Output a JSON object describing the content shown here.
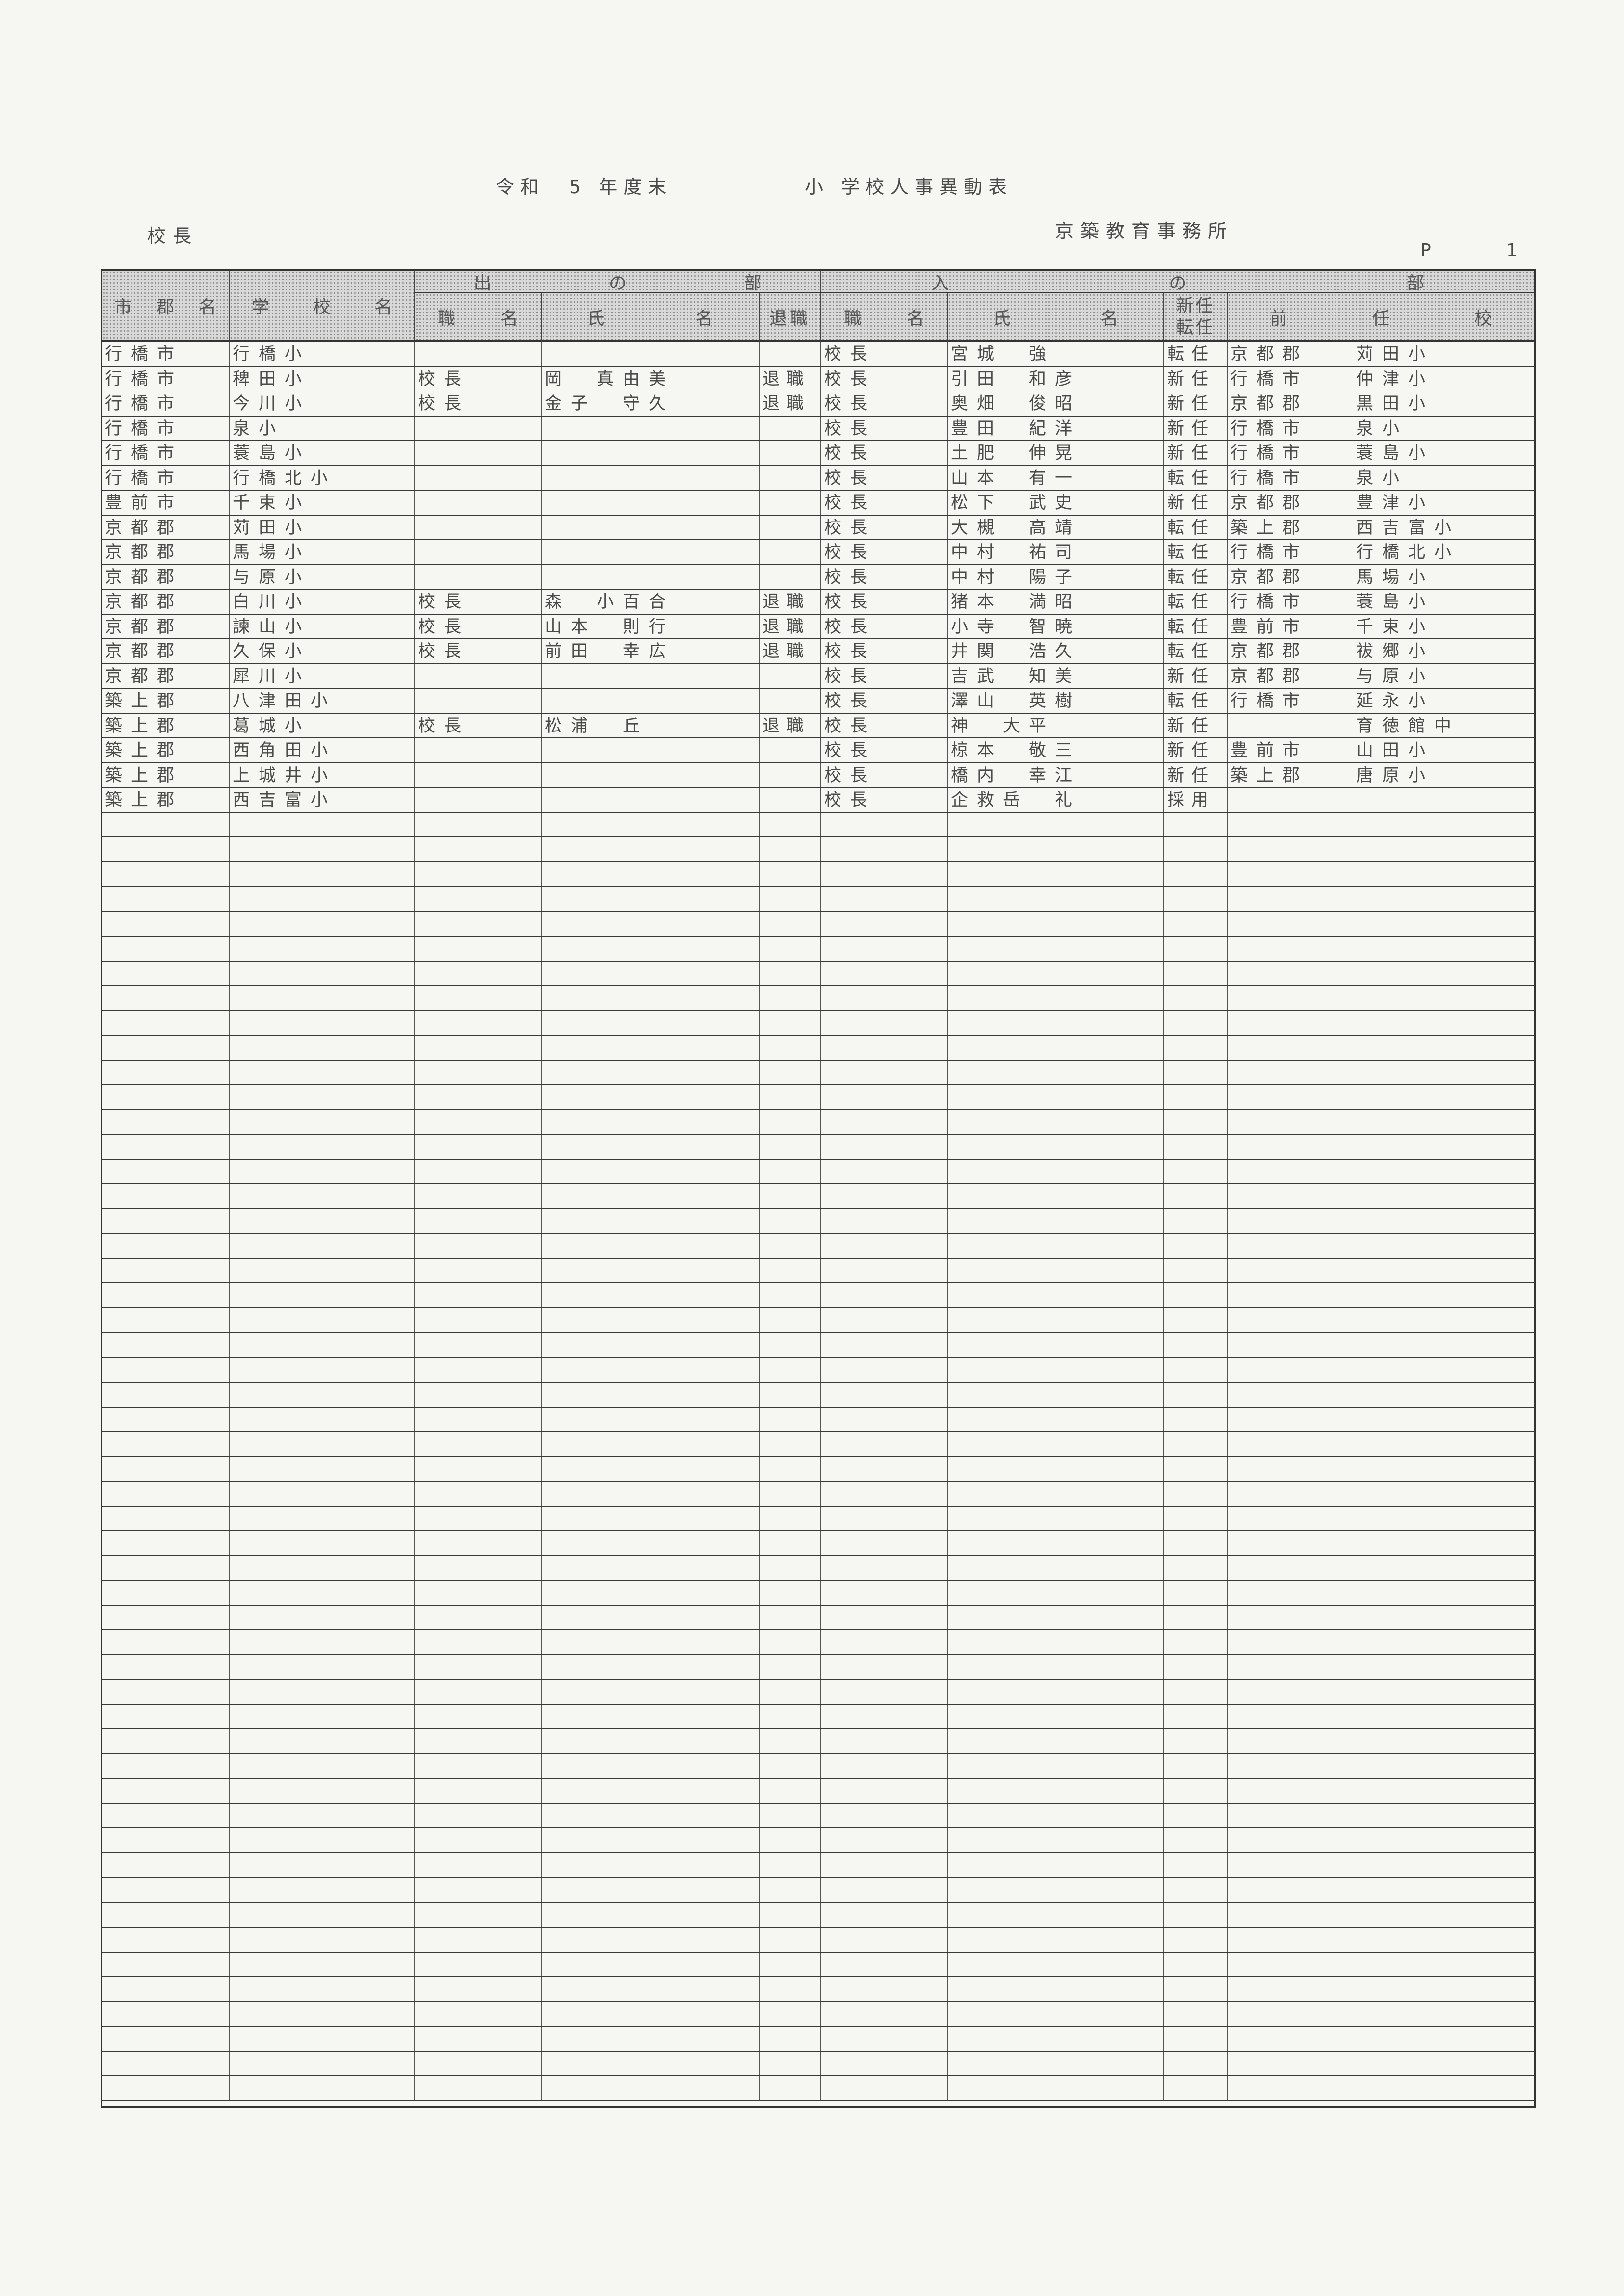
{
  "header": {
    "title_era": "令和　5 年度末",
    "title_main": "小 学校人事異動表",
    "category": "校長",
    "office": "京築教育事務所",
    "page_label": "P",
    "page_number": "1"
  },
  "table": {
    "group_out": [
      "出",
      "の",
      "部"
    ],
    "group_in": [
      "入",
      "の",
      "部"
    ],
    "columns": {
      "district": [
        "市",
        "郡",
        "名"
      ],
      "school": [
        "学",
        "校",
        "名"
      ],
      "out_position": [
        "職",
        "名"
      ],
      "out_name": [
        "氏",
        "名"
      ],
      "out_type": "退職",
      "in_position": [
        "職",
        "名"
      ],
      "in_name": [
        "氏",
        "名"
      ],
      "in_type_1": "新任",
      "in_type_2": "転任",
      "prev_school": [
        "前",
        "任",
        "校"
      ]
    },
    "rows": [
      {
        "district": "行橋市",
        "school": "行橋小",
        "out_position": "",
        "out_name": "",
        "out_type": "",
        "in_position": "校長",
        "in_name": "宮城　強",
        "in_type": "転任",
        "prev_district": "京都郡",
        "prev_school": "苅田小"
      },
      {
        "district": "行橋市",
        "school": "稗田小",
        "out_position": "校長",
        "out_name": "岡　真由美",
        "out_type": "退職",
        "in_position": "校長",
        "in_name": "引田　和彦",
        "in_type": "新任",
        "prev_district": "行橋市",
        "prev_school": "仲津小"
      },
      {
        "district": "行橋市",
        "school": "今川小",
        "out_position": "校長",
        "out_name": "金子　守久",
        "out_type": "退職",
        "in_position": "校長",
        "in_name": "奥畑　俊昭",
        "in_type": "新任",
        "prev_district": "京都郡",
        "prev_school": "黒田小"
      },
      {
        "district": "行橋市",
        "school": "泉小",
        "out_position": "",
        "out_name": "",
        "out_type": "",
        "in_position": "校長",
        "in_name": "豊田　紀洋",
        "in_type": "新任",
        "prev_district": "行橋市",
        "prev_school": "泉小"
      },
      {
        "district": "行橋市",
        "school": "蓑島小",
        "out_position": "",
        "out_name": "",
        "out_type": "",
        "in_position": "校長",
        "in_name": "土肥　伸晃",
        "in_type": "新任",
        "prev_district": "行橋市",
        "prev_school": "蓑島小"
      },
      {
        "district": "行橋市",
        "school": "行橋北小",
        "out_position": "",
        "out_name": "",
        "out_type": "",
        "in_position": "校長",
        "in_name": "山本　有一",
        "in_type": "転任",
        "prev_district": "行橋市",
        "prev_school": "泉小"
      },
      {
        "district": "豊前市",
        "school": "千束小",
        "out_position": "",
        "out_name": "",
        "out_type": "",
        "in_position": "校長",
        "in_name": "松下　武史",
        "in_type": "新任",
        "prev_district": "京都郡",
        "prev_school": "豊津小"
      },
      {
        "district": "京都郡",
        "school": "苅田小",
        "out_position": "",
        "out_name": "",
        "out_type": "",
        "in_position": "校長",
        "in_name": "大槻　高靖",
        "in_type": "転任",
        "prev_district": "築上郡",
        "prev_school": "西吉富小"
      },
      {
        "district": "京都郡",
        "school": "馬場小",
        "out_position": "",
        "out_name": "",
        "out_type": "",
        "in_position": "校長",
        "in_name": "中村　祐司",
        "in_type": "転任",
        "prev_district": "行橋市",
        "prev_school": "行橋北小"
      },
      {
        "district": "京都郡",
        "school": "与原小",
        "out_position": "",
        "out_name": "",
        "out_type": "",
        "in_position": "校長",
        "in_name": "中村　陽子",
        "in_type": "転任",
        "prev_district": "京都郡",
        "prev_school": "馬場小"
      },
      {
        "district": "京都郡",
        "school": "白川小",
        "out_position": "校長",
        "out_name": "森　小百合",
        "out_type": "退職",
        "in_position": "校長",
        "in_name": "猪本　満昭",
        "in_type": "転任",
        "prev_district": "行橋市",
        "prev_school": "蓑島小"
      },
      {
        "district": "京都郡",
        "school": "諫山小",
        "out_position": "校長",
        "out_name": "山本　則行",
        "out_type": "退職",
        "in_position": "校長",
        "in_name": "小寺　智暁",
        "in_type": "転任",
        "prev_district": "豊前市",
        "prev_school": "千束小"
      },
      {
        "district": "京都郡",
        "school": "久保小",
        "out_position": "校長",
        "out_name": "前田　幸広",
        "out_type": "退職",
        "in_position": "校長",
        "in_name": "井関　浩久",
        "in_type": "転任",
        "prev_district": "京都郡",
        "prev_school": "祓郷小"
      },
      {
        "district": "京都郡",
        "school": "犀川小",
        "out_position": "",
        "out_name": "",
        "out_type": "",
        "in_position": "校長",
        "in_name": "吉武　知美",
        "in_type": "新任",
        "prev_district": "京都郡",
        "prev_school": "与原小"
      },
      {
        "district": "築上郡",
        "school": "八津田小",
        "out_position": "",
        "out_name": "",
        "out_type": "",
        "in_position": "校長",
        "in_name": "澤山　英樹",
        "in_type": "転任",
        "prev_district": "行橋市",
        "prev_school": "延永小"
      },
      {
        "district": "築上郡",
        "school": "葛城小",
        "out_position": "校長",
        "out_name": "松浦　丘",
        "out_type": "退職",
        "in_position": "校長",
        "in_name": "神　大平",
        "in_type": "新任",
        "prev_district": "",
        "prev_school": "育徳館中"
      },
      {
        "district": "築上郡",
        "school": "西角田小",
        "out_position": "",
        "out_name": "",
        "out_type": "",
        "in_position": "校長",
        "in_name": "椋本　敬三",
        "in_type": "新任",
        "prev_district": "豊前市",
        "prev_school": "山田小"
      },
      {
        "district": "築上郡",
        "school": "上城井小",
        "out_position": "",
        "out_name": "",
        "out_type": "",
        "in_position": "校長",
        "in_name": "橋内　幸江",
        "in_type": "新任",
        "prev_district": "築上郡",
        "prev_school": "唐原小"
      },
      {
        "district": "築上郡",
        "school": "西吉富小",
        "out_position": "",
        "out_name": "",
        "out_type": "",
        "in_position": "校長",
        "in_name": "企救岳　礼",
        "in_type": "採用",
        "prev_district": "",
        "prev_school": ""
      }
    ]
  }
}
